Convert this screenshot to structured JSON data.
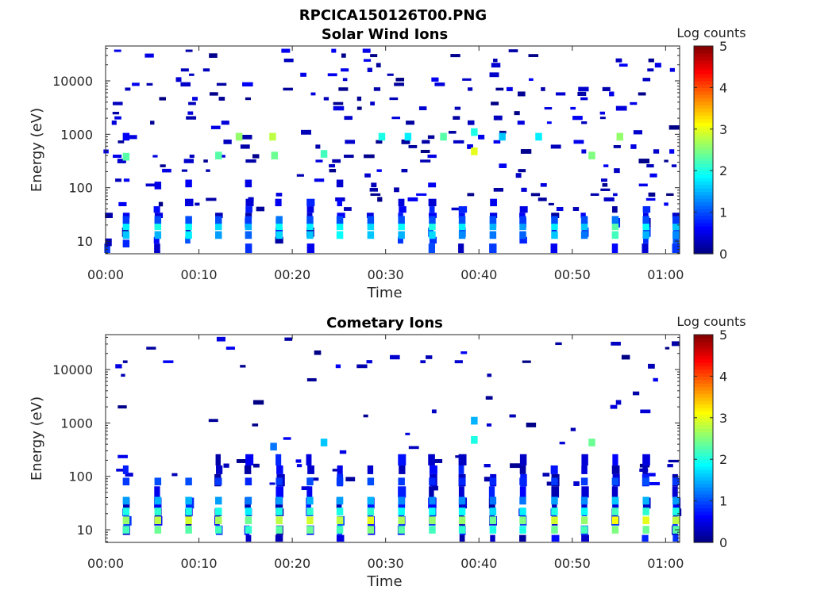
{
  "figure_title": "RPCICA150126T00.PNG",
  "chart_data": [
    {
      "type": "heatmap",
      "title": "Solar Wind Ions",
      "xlabel": "Time",
      "ylabel": "Energy (eV)",
      "x_tick_labels": [
        "00:00",
        "00:10",
        "00:20",
        "00:30",
        "00:40",
        "00:50",
        "01:00"
      ],
      "x_tick_minutes": [
        0,
        10,
        20,
        30,
        40,
        50,
        60
      ],
      "xlim_minutes": [
        0,
        61.5
      ],
      "y_scale": "log",
      "ylim": [
        5.8,
        45000
      ],
      "y_tick_labels": [
        "10",
        "100",
        "1000",
        "10000"
      ],
      "y_tick_values": [
        10,
        100,
        1000,
        10000
      ],
      "colorbar": {
        "label": "Log counts",
        "min": 0,
        "max": 5,
        "tick_labels": [
          "0",
          "1",
          "2",
          "3",
          "4",
          "5"
        ],
        "colormap": "jet"
      },
      "scan_period_minutes": 3.3,
      "scan_centers_minutes": [
        0.3,
        2.2,
        5.6,
        8.9,
        12.1,
        15.3,
        18.6,
        21.9,
        25.1,
        28.4,
        31.7,
        35.0,
        38.2,
        41.5,
        44.7,
        48.1,
        51.3,
        54.6,
        57.9,
        61.1
      ],
      "cells": [
        {
          "t": 0.3,
          "e": 9.5,
          "v": 0.3
        },
        {
          "t": 2.2,
          "e": 9,
          "v": 0.8
        },
        {
          "t": 2.2,
          "e": 13,
          "v": 1.6
        },
        {
          "t": 2.2,
          "e": 19,
          "v": 1.8
        },
        {
          "t": 2.2,
          "e": 25,
          "v": 0.9
        },
        {
          "t": 2.2,
          "e": 380,
          "v": 2.3
        },
        {
          "t": 2.2,
          "e": 900,
          "v": 0.6
        },
        {
          "t": 5.6,
          "e": 13,
          "v": 1.5
        },
        {
          "t": 5.6,
          "e": 19,
          "v": 2.0
        },
        {
          "t": 5.6,
          "e": 25,
          "v": 1.0
        },
        {
          "t": 5.6,
          "e": 110,
          "v": 0.5
        },
        {
          "t": 8.9,
          "e": 13,
          "v": 1.8
        },
        {
          "t": 8.9,
          "e": 19,
          "v": 1.9
        },
        {
          "t": 8.9,
          "e": 25,
          "v": 1.0
        },
        {
          "t": 8.9,
          "e": 120,
          "v": 0.6
        },
        {
          "t": 12.1,
          "e": 13,
          "v": 1.4
        },
        {
          "t": 12.1,
          "e": 19,
          "v": 1.7
        },
        {
          "t": 12.1,
          "e": 25,
          "v": 1.0
        },
        {
          "t": 12.1,
          "e": 400,
          "v": 2.3
        },
        {
          "t": 15.3,
          "e": 13,
          "v": 1.1
        },
        {
          "t": 15.3,
          "e": 19,
          "v": 1.5
        },
        {
          "t": 15.3,
          "e": 25,
          "v": 0.9
        },
        {
          "t": 15.3,
          "e": 120,
          "v": 0.5
        },
        {
          "t": 14.3,
          "e": 900,
          "v": 2.6
        },
        {
          "t": 18.6,
          "e": 13,
          "v": 1.7
        },
        {
          "t": 18.6,
          "e": 19,
          "v": 1.9
        },
        {
          "t": 18.6,
          "e": 25,
          "v": 1.2
        },
        {
          "t": 18.1,
          "e": 400,
          "v": 2.4
        },
        {
          "t": 17.9,
          "e": 900,
          "v": 2.8
        },
        {
          "t": 21.9,
          "e": 13,
          "v": 1.6
        },
        {
          "t": 21.9,
          "e": 19,
          "v": 1.8
        },
        {
          "t": 21.9,
          "e": 25,
          "v": 1.0
        },
        {
          "t": 23.4,
          "e": 430,
          "v": 2.2
        },
        {
          "t": 25.1,
          "e": 13,
          "v": 1.9
        },
        {
          "t": 25.1,
          "e": 19,
          "v": 1.9
        },
        {
          "t": 25.1,
          "e": 25,
          "v": 1.0
        },
        {
          "t": 25.1,
          "e": 120,
          "v": 0.4
        },
        {
          "t": 28.4,
          "e": 13,
          "v": 1.6
        },
        {
          "t": 28.4,
          "e": 19,
          "v": 1.7
        },
        {
          "t": 28.4,
          "e": 25,
          "v": 1.0
        },
        {
          "t": 29.6,
          "e": 900,
          "v": 2.0
        },
        {
          "t": 31.7,
          "e": 13,
          "v": 1.5
        },
        {
          "t": 31.7,
          "e": 19,
          "v": 1.9
        },
        {
          "t": 31.7,
          "e": 25,
          "v": 1.0
        },
        {
          "t": 32.4,
          "e": 900,
          "v": 1.8
        },
        {
          "t": 35.0,
          "e": 13,
          "v": 1.7
        },
        {
          "t": 35.0,
          "e": 19,
          "v": 2.0
        },
        {
          "t": 35.0,
          "e": 25,
          "v": 1.0
        },
        {
          "t": 36.2,
          "e": 900,
          "v": 2.3
        },
        {
          "t": 38.2,
          "e": 13,
          "v": 1.3
        },
        {
          "t": 38.2,
          "e": 19,
          "v": 1.8
        },
        {
          "t": 38.2,
          "e": 25,
          "v": 1.0
        },
        {
          "t": 39.5,
          "e": 480,
          "v": 3.0
        },
        {
          "t": 39.5,
          "e": 1100,
          "v": 2.0
        },
        {
          "t": 41.5,
          "e": 13,
          "v": 1.2
        },
        {
          "t": 41.5,
          "e": 19,
          "v": 1.5
        },
        {
          "t": 41.5,
          "e": 25,
          "v": 1.0
        },
        {
          "t": 42.5,
          "e": 900,
          "v": 1.6
        },
        {
          "t": 44.7,
          "e": 13,
          "v": 1.1
        },
        {
          "t": 44.7,
          "e": 19,
          "v": 1.4
        },
        {
          "t": 44.7,
          "e": 25,
          "v": 0.9
        },
        {
          "t": 48.1,
          "e": 13,
          "v": 1.6
        },
        {
          "t": 48.1,
          "e": 19,
          "v": 1.8
        },
        {
          "t": 48.1,
          "e": 25,
          "v": 1.0
        },
        {
          "t": 46.4,
          "e": 900,
          "v": 1.8
        },
        {
          "t": 51.3,
          "e": 13,
          "v": 1.2
        },
        {
          "t": 51.3,
          "e": 19,
          "v": 1.6
        },
        {
          "t": 51.3,
          "e": 25,
          "v": 1.0
        },
        {
          "t": 52.1,
          "e": 400,
          "v": 2.5
        },
        {
          "t": 54.6,
          "e": 13,
          "v": 2.2
        },
        {
          "t": 54.6,
          "e": 19,
          "v": 2.3
        },
        {
          "t": 54.6,
          "e": 25,
          "v": 1.2
        },
        {
          "t": 55.1,
          "e": 900,
          "v": 2.6
        },
        {
          "t": 57.9,
          "e": 13,
          "v": 1.5
        },
        {
          "t": 57.9,
          "e": 19,
          "v": 1.9
        },
        {
          "t": 57.9,
          "e": 25,
          "v": 1.0
        },
        {
          "t": 61.1,
          "e": 13,
          "v": 1.3
        },
        {
          "t": 61.1,
          "e": 19,
          "v": 1.6
        },
        {
          "t": 61.1,
          "e": 25,
          "v": 0.9
        }
      ]
    },
    {
      "type": "heatmap",
      "title": "Cometary Ions",
      "xlabel": "Time",
      "ylabel": "Energy (eV)",
      "x_tick_labels": [
        "00:00",
        "00:10",
        "00:20",
        "00:30",
        "00:40",
        "00:50",
        "01:00"
      ],
      "x_tick_minutes": [
        0,
        10,
        20,
        30,
        40,
        50,
        60
      ],
      "xlim_minutes": [
        0,
        61.5
      ],
      "y_scale": "log",
      "ylim": [
        5.8,
        45000
      ],
      "y_tick_labels": [
        "10",
        "100",
        "1000",
        "10000"
      ],
      "y_tick_values": [
        10,
        100,
        1000,
        10000
      ],
      "colorbar": {
        "label": "Log counts",
        "min": 0,
        "max": 5,
        "tick_labels": [
          "0",
          "1",
          "2",
          "3",
          "4",
          "5"
        ],
        "colormap": "jet"
      },
      "scan_period_minutes": 3.3,
      "scan_centers_minutes": [
        2.2,
        5.6,
        8.9,
        12.1,
        15.3,
        18.6,
        21.9,
        25.1,
        28.4,
        31.7,
        35.0,
        38.2,
        41.5,
        44.7,
        48.1,
        51.3,
        54.6,
        57.9,
        61.1
      ],
      "cells": [
        {
          "t": 2.2,
          "e": 10,
          "v": 2.2
        },
        {
          "t": 2.2,
          "e": 15,
          "v": 2.6
        },
        {
          "t": 2.2,
          "e": 22,
          "v": 2.0
        },
        {
          "t": 2.2,
          "e": 35,
          "v": 1.4
        },
        {
          "t": 2.2,
          "e": 80,
          "v": 0.9
        },
        {
          "t": 5.6,
          "e": 10,
          "v": 2.4
        },
        {
          "t": 5.6,
          "e": 15,
          "v": 2.8
        },
        {
          "t": 5.6,
          "e": 22,
          "v": 2.1
        },
        {
          "t": 5.6,
          "e": 35,
          "v": 1.5
        },
        {
          "t": 5.6,
          "e": 80,
          "v": 1.0
        },
        {
          "t": 8.9,
          "e": 10,
          "v": 2.3
        },
        {
          "t": 8.9,
          "e": 15,
          "v": 2.9
        },
        {
          "t": 8.9,
          "e": 22,
          "v": 2.0
        },
        {
          "t": 8.9,
          "e": 35,
          "v": 1.5
        },
        {
          "t": 8.9,
          "e": 80,
          "v": 1.0
        },
        {
          "t": 12.1,
          "e": 10,
          "v": 2.2
        },
        {
          "t": 12.1,
          "e": 15,
          "v": 2.7
        },
        {
          "t": 12.1,
          "e": 22,
          "v": 2.0
        },
        {
          "t": 12.1,
          "e": 35,
          "v": 1.4
        },
        {
          "t": 12.1,
          "e": 80,
          "v": 0.9
        },
        {
          "t": 15.3,
          "e": 10,
          "v": 2.1
        },
        {
          "t": 15.3,
          "e": 15,
          "v": 2.4
        },
        {
          "t": 15.3,
          "e": 22,
          "v": 1.8
        },
        {
          "t": 15.3,
          "e": 35,
          "v": 1.2
        },
        {
          "t": 15.3,
          "e": 80,
          "v": 0.8
        },
        {
          "t": 18.6,
          "e": 10,
          "v": 2.3
        },
        {
          "t": 18.6,
          "e": 15,
          "v": 2.8
        },
        {
          "t": 18.6,
          "e": 22,
          "v": 2.0
        },
        {
          "t": 18.6,
          "e": 35,
          "v": 1.4
        },
        {
          "t": 18.6,
          "e": 80,
          "v": 0.9
        },
        {
          "t": 21.9,
          "e": 10,
          "v": 2.4
        },
        {
          "t": 21.9,
          "e": 15,
          "v": 2.9
        },
        {
          "t": 21.9,
          "e": 22,
          "v": 2.1
        },
        {
          "t": 21.9,
          "e": 35,
          "v": 1.5
        },
        {
          "t": 21.9,
          "e": 80,
          "v": 1.0
        },
        {
          "t": 25.1,
          "e": 10,
          "v": 2.2
        },
        {
          "t": 25.1,
          "e": 15,
          "v": 2.8
        },
        {
          "t": 25.1,
          "e": 22,
          "v": 2.0
        },
        {
          "t": 25.1,
          "e": 35,
          "v": 1.4
        },
        {
          "t": 25.1,
          "e": 80,
          "v": 0.9
        },
        {
          "t": 28.4,
          "e": 10,
          "v": 2.5
        },
        {
          "t": 28.4,
          "e": 15,
          "v": 3.0
        },
        {
          "t": 28.4,
          "e": 22,
          "v": 2.1
        },
        {
          "t": 28.4,
          "e": 35,
          "v": 1.5
        },
        {
          "t": 28.4,
          "e": 80,
          "v": 1.0
        },
        {
          "t": 31.7,
          "e": 10,
          "v": 2.3
        },
        {
          "t": 31.7,
          "e": 15,
          "v": 2.7
        },
        {
          "t": 31.7,
          "e": 22,
          "v": 1.9
        },
        {
          "t": 31.7,
          "e": 35,
          "v": 1.3
        },
        {
          "t": 31.7,
          "e": 80,
          "v": 0.9
        },
        {
          "t": 35.0,
          "e": 10,
          "v": 2.2
        },
        {
          "t": 35.0,
          "e": 15,
          "v": 2.6
        },
        {
          "t": 35.0,
          "e": 22,
          "v": 1.9
        },
        {
          "t": 35.0,
          "e": 35,
          "v": 1.3
        },
        {
          "t": 35.0,
          "e": 80,
          "v": 0.8
        },
        {
          "t": 38.2,
          "e": 10,
          "v": 2.1
        },
        {
          "t": 38.2,
          "e": 15,
          "v": 2.6
        },
        {
          "t": 38.2,
          "e": 22,
          "v": 1.9
        },
        {
          "t": 38.2,
          "e": 35,
          "v": 1.3
        },
        {
          "t": 38.2,
          "e": 80,
          "v": 0.8
        },
        {
          "t": 41.5,
          "e": 10,
          "v": 2.0
        },
        {
          "t": 41.5,
          "e": 15,
          "v": 2.4
        },
        {
          "t": 41.5,
          "e": 22,
          "v": 1.7
        },
        {
          "t": 41.5,
          "e": 35,
          "v": 1.2
        },
        {
          "t": 41.5,
          "e": 80,
          "v": 0.8
        },
        {
          "t": 44.7,
          "e": 10,
          "v": 2.0
        },
        {
          "t": 44.7,
          "e": 15,
          "v": 2.5
        },
        {
          "t": 44.7,
          "e": 22,
          "v": 1.8
        },
        {
          "t": 44.7,
          "e": 35,
          "v": 1.2
        },
        {
          "t": 44.7,
          "e": 80,
          "v": 0.8
        },
        {
          "t": 48.1,
          "e": 10,
          "v": 2.4
        },
        {
          "t": 48.1,
          "e": 15,
          "v": 2.9
        },
        {
          "t": 48.1,
          "e": 22,
          "v": 2.0
        },
        {
          "t": 48.1,
          "e": 35,
          "v": 1.4
        },
        {
          "t": 48.1,
          "e": 80,
          "v": 0.9
        },
        {
          "t": 51.3,
          "e": 10,
          "v": 2.2
        },
        {
          "t": 51.3,
          "e": 15,
          "v": 2.6
        },
        {
          "t": 51.3,
          "e": 22,
          "v": 1.9
        },
        {
          "t": 51.3,
          "e": 35,
          "v": 1.3
        },
        {
          "t": 51.3,
          "e": 80,
          "v": 0.9
        },
        {
          "t": 54.6,
          "e": 10,
          "v": 2.5
        },
        {
          "t": 54.6,
          "e": 15,
          "v": 3.1
        },
        {
          "t": 54.6,
          "e": 22,
          "v": 2.2
        },
        {
          "t": 54.6,
          "e": 35,
          "v": 1.6
        },
        {
          "t": 54.6,
          "e": 80,
          "v": 1.0
        },
        {
          "t": 57.9,
          "e": 10,
          "v": 2.4
        },
        {
          "t": 57.9,
          "e": 15,
          "v": 3.0
        },
        {
          "t": 57.9,
          "e": 22,
          "v": 2.1
        },
        {
          "t": 57.9,
          "e": 35,
          "v": 1.5
        },
        {
          "t": 57.9,
          "e": 80,
          "v": 1.0
        },
        {
          "t": 61.1,
          "e": 10,
          "v": 2.3
        },
        {
          "t": 61.1,
          "e": 15,
          "v": 2.8
        },
        {
          "t": 61.1,
          "e": 22,
          "v": 2.0
        },
        {
          "t": 61.1,
          "e": 35,
          "v": 1.4
        },
        {
          "t": 61.1,
          "e": 80,
          "v": 0.9
        },
        {
          "t": 18.0,
          "e": 360,
          "v": 1.2
        },
        {
          "t": 23.4,
          "e": 430,
          "v": 1.6
        },
        {
          "t": 39.5,
          "e": 480,
          "v": 2.0
        },
        {
          "t": 52.1,
          "e": 430,
          "v": 2.4
        },
        {
          "t": 39.5,
          "e": 1100,
          "v": 1.5
        }
      ]
    }
  ]
}
